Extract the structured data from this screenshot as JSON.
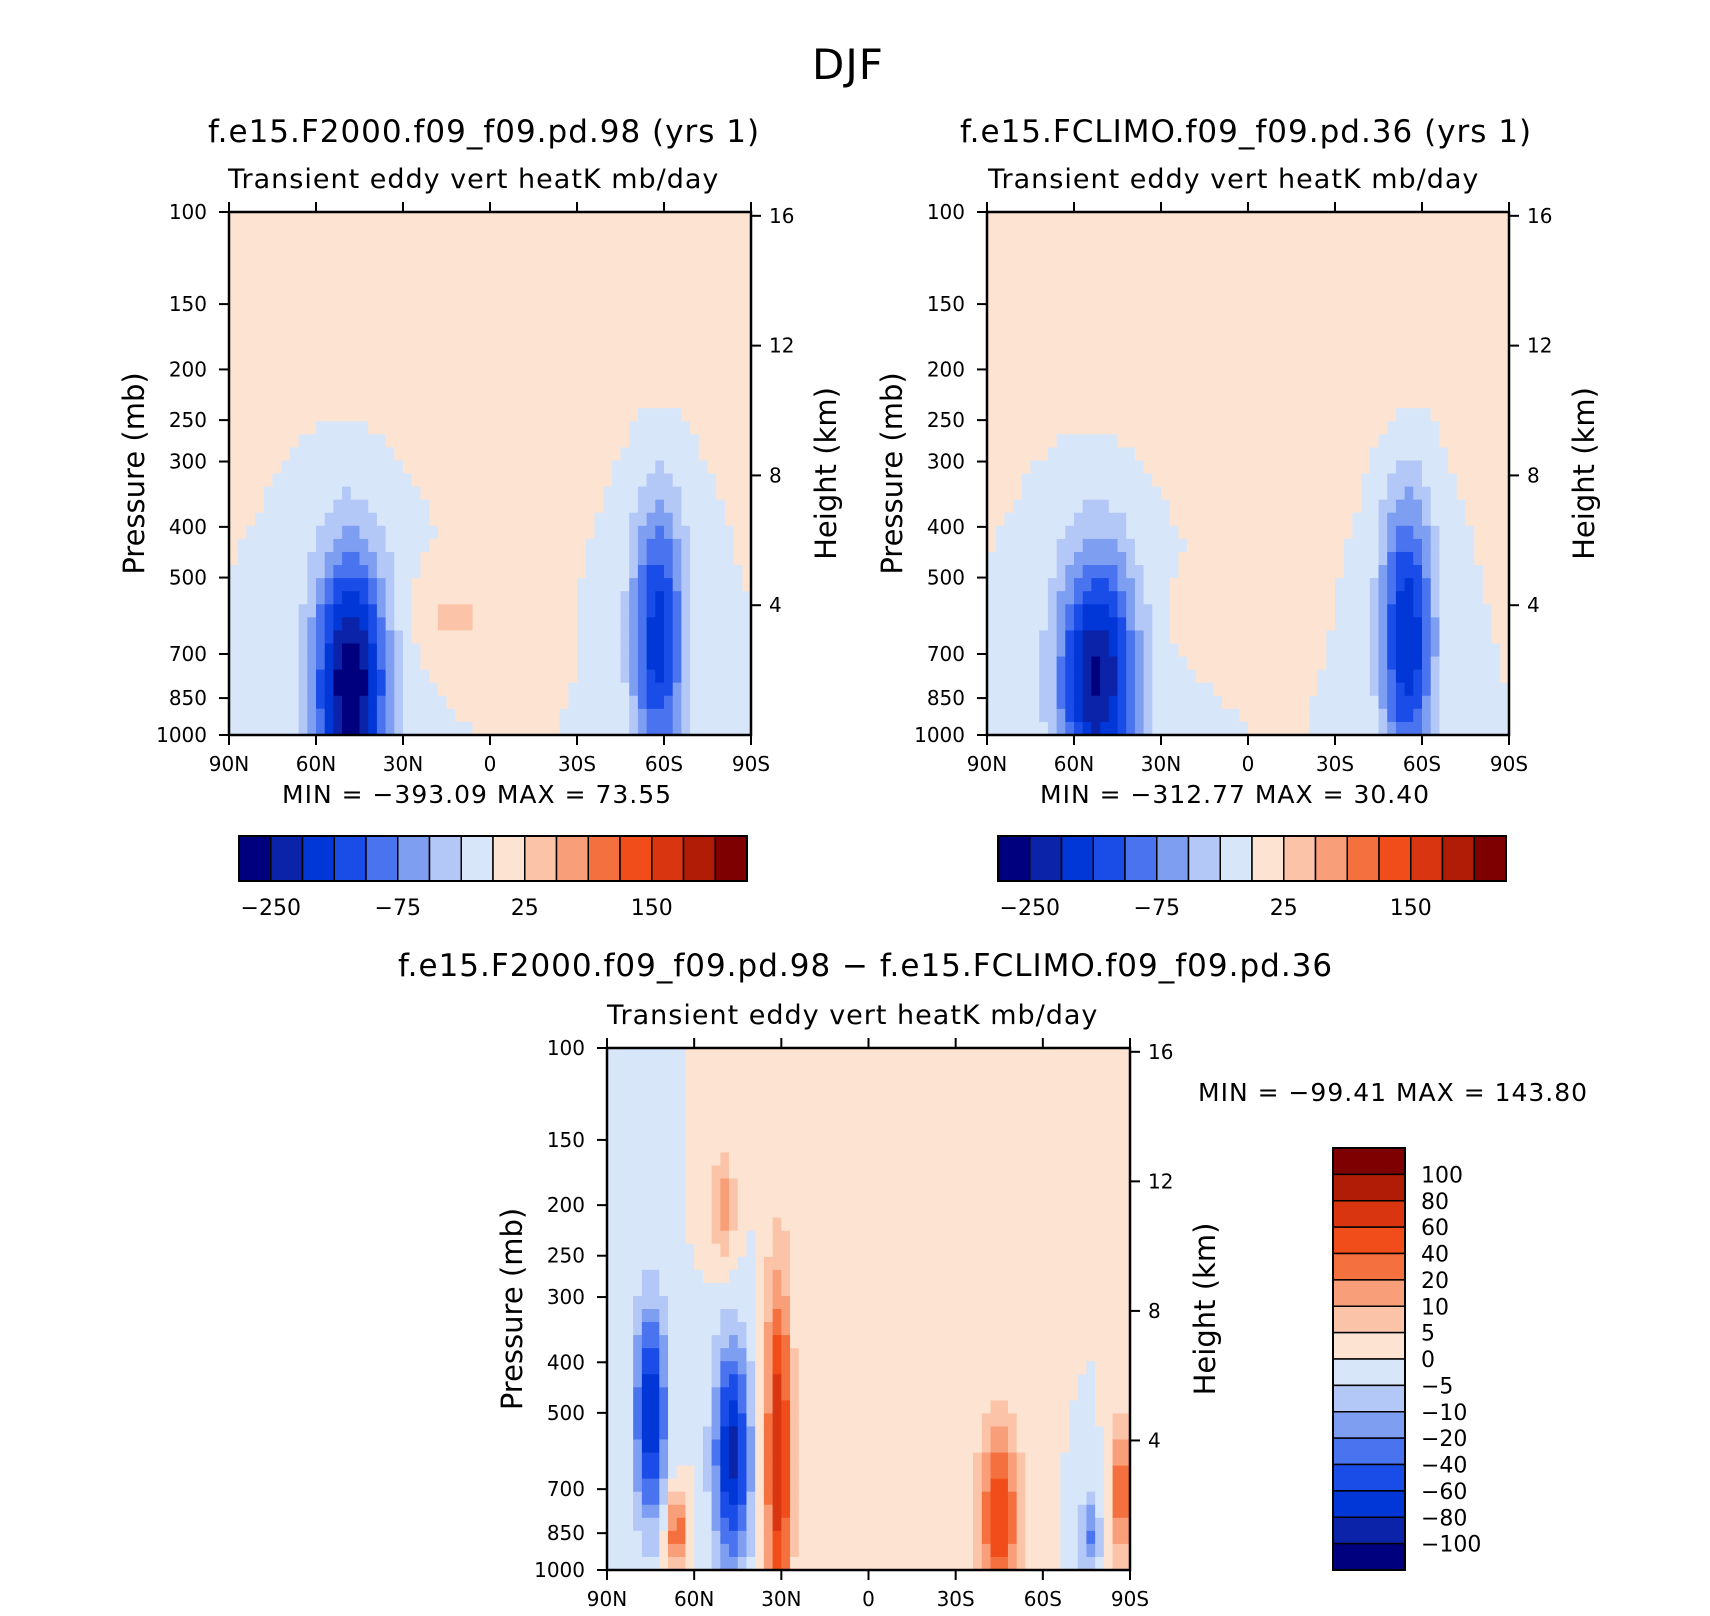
{
  "season_title": "DJF",
  "panels": [
    {
      "id": "panel-left",
      "run_title": "f.e15.F2000.f09_f09.pd.98 (yrs 1)",
      "var_title": "Transient eddy vert heatK mb/day",
      "min_max": "MIN = −393.09   MAX =   73.55"
    },
    {
      "id": "panel-right",
      "run_title": "f.e15.FCLIMO.f09_f09.pd.36 (yrs 1)",
      "var_title": "Transient eddy vert heatK mb/day",
      "min_max": "MIN = −312.77   MAX =   30.40"
    },
    {
      "id": "panel-diff",
      "run_title": "f.e15.F2000.f09_f09.pd.98 − f.e15.FCLIMO.f09_f09.pd.36",
      "var_title": "Transient eddy vert heatK mb/day",
      "min_max": "MIN = −99.41   MAX = 143.80"
    }
  ],
  "colors": {
    "top_scale": [
      "#00007f",
      "#0a23a8",
      "#0037d6",
      "#1a4de8",
      "#4a74ef",
      "#7e9ef2",
      "#b3c8f7",
      "#d8e6fa",
      "#fde4d2",
      "#fbc4a8",
      "#f89e78",
      "#f4703f",
      "#f04d1b",
      "#d83510",
      "#b01c06",
      "#7e0000"
    ],
    "diff_scale": [
      "#00007f",
      "#0a23a8",
      "#0037d6",
      "#1a4de8",
      "#4a74ef",
      "#7e9ef2",
      "#b3c8f7",
      "#d8e6fa",
      "#fde4d2",
      "#fbc4a8",
      "#f89e78",
      "#f4703f",
      "#f04d1b",
      "#d83510",
      "#b01c06",
      "#7e0000"
    ],
    "background": "#ffffff"
  },
  "chart_data": [
    {
      "type": "heatmap",
      "title": "f.e15.F2000.f09_f09.pd.98 (yrs 1)",
      "subtitle": "Transient eddy vert heatK mb/day",
      "xlabel": "",
      "ylabel": "Pressure (mb)",
      "y2label": "Height (km)",
      "x_ticks": [
        "90N",
        "60N",
        "30N",
        "0",
        "30S",
        "60S",
        "90S"
      ],
      "x_range": [
        90,
        -90
      ],
      "y_ticks": [
        100,
        150,
        200,
        250,
        300,
        400,
        500,
        700,
        850,
        1000
      ],
      "y_range": [
        100,
        1000
      ],
      "y_scale": "log",
      "y2_ticks": [
        16,
        12,
        8,
        4
      ],
      "min": -393.09,
      "max": 73.55,
      "colorbar_labels": [
        "−250",
        "−75",
        "25",
        "150"
      ],
      "features": [
        {
          "kind": "min",
          "lat": 48,
          "p": 800,
          "strength": 1.0,
          "lat_width": 14,
          "p_top": 420
        },
        {
          "kind": "min",
          "lat": -58,
          "p": 650,
          "strength": 0.7,
          "lat_width": 10,
          "p_top": 340
        },
        {
          "kind": "max",
          "lat": 12,
          "p": 600,
          "strength": 0.15,
          "lat_width": 18,
          "p_top": 500
        },
        {
          "kind": "max",
          "lat": -10,
          "p": 160,
          "strength": 0.12,
          "lat_width": 70,
          "p_top": 100
        }
      ]
    },
    {
      "type": "heatmap",
      "title": "f.e15.FCLIMO.f09_f09.pd.36 (yrs 1)",
      "subtitle": "Transient eddy vert heatK mb/day",
      "xlabel": "",
      "ylabel": "Pressure (mb)",
      "y2label": "Height (km)",
      "x_ticks": [
        "90N",
        "60N",
        "30N",
        "0",
        "30S",
        "60S",
        "90S"
      ],
      "x_range": [
        90,
        -90
      ],
      "y_ticks": [
        100,
        150,
        200,
        250,
        300,
        400,
        500,
        700,
        850,
        1000
      ],
      "y_range": [
        100,
        1000
      ],
      "y_scale": "log",
      "y2_ticks": [
        16,
        12,
        8,
        4
      ],
      "min": -312.77,
      "max": 30.4,
      "colorbar_labels": [
        "−250",
        "−75",
        "25",
        "150"
      ],
      "features": [
        {
          "kind": "min",
          "lat": 52,
          "p": 780,
          "strength": 0.9,
          "lat_width": 15,
          "p_top": 420
        },
        {
          "kind": "min",
          "lat": -55,
          "p": 650,
          "strength": 0.75,
          "lat_width": 10,
          "p_top": 330
        },
        {
          "kind": "max",
          "lat": 10,
          "p": 580,
          "strength": 0.12,
          "lat_width": 16,
          "p_top": 500
        },
        {
          "kind": "max",
          "lat": -10,
          "p": 170,
          "strength": 0.12,
          "lat_width": 70,
          "p_top": 100
        }
      ]
    },
    {
      "type": "heatmap",
      "title": "f.e15.F2000.f09_f09.pd.98 − f.e15.FCLIMO.f09_f09.pd.36",
      "subtitle": "Transient eddy vert heatK mb/day",
      "xlabel": "",
      "ylabel": "Pressure (mb)",
      "y2label": "Height (km)",
      "x_ticks": [
        "90N",
        "60N",
        "30N",
        "0",
        "30S",
        "60S",
        "90S"
      ],
      "x_range": [
        90,
        -90
      ],
      "y_ticks": [
        100,
        150,
        200,
        250,
        300,
        400,
        500,
        700,
        850,
        1000
      ],
      "y_range": [
        100,
        1000
      ],
      "y_scale": "log",
      "y2_ticks": [
        16,
        12,
        8,
        4
      ],
      "min": -99.41,
      "max": 143.8,
      "colorbar_labels": [
        "100",
        "80",
        "60",
        "40",
        "20",
        "10",
        "5",
        "0",
        "−5",
        "−10",
        "−20",
        "−40",
        "−60",
        "−80",
        "−100"
      ],
      "features": [
        {
          "kind": "min",
          "lat": 75,
          "p": 500,
          "strength": 0.8,
          "lat_width": 6,
          "p_top": 300
        },
        {
          "kind": "max",
          "lat": 66,
          "p": 850,
          "strength": 0.5,
          "lat_width": 4,
          "p_top": 700
        },
        {
          "kind": "min",
          "lat": 47,
          "p": 600,
          "strength": 0.8,
          "lat_width": 7,
          "p_top": 350
        },
        {
          "kind": "max",
          "lat": 31,
          "p": 600,
          "strength": 0.75,
          "lat_width": 5,
          "p_top": 250
        },
        {
          "kind": "max",
          "lat": 50,
          "p": 200,
          "strength": 0.3,
          "lat_width": 5,
          "p_top": 150
        },
        {
          "kind": "max",
          "lat": -45,
          "p": 800,
          "strength": 0.6,
          "lat_width": 8,
          "p_top": 500
        },
        {
          "kind": "max",
          "lat": -87,
          "p": 700,
          "strength": 0.6,
          "lat_width": 3,
          "p_top": 500
        },
        {
          "kind": "min",
          "lat": -76,
          "p": 850,
          "strength": 0.4,
          "lat_width": 4,
          "p_top": 700
        }
      ]
    }
  ]
}
